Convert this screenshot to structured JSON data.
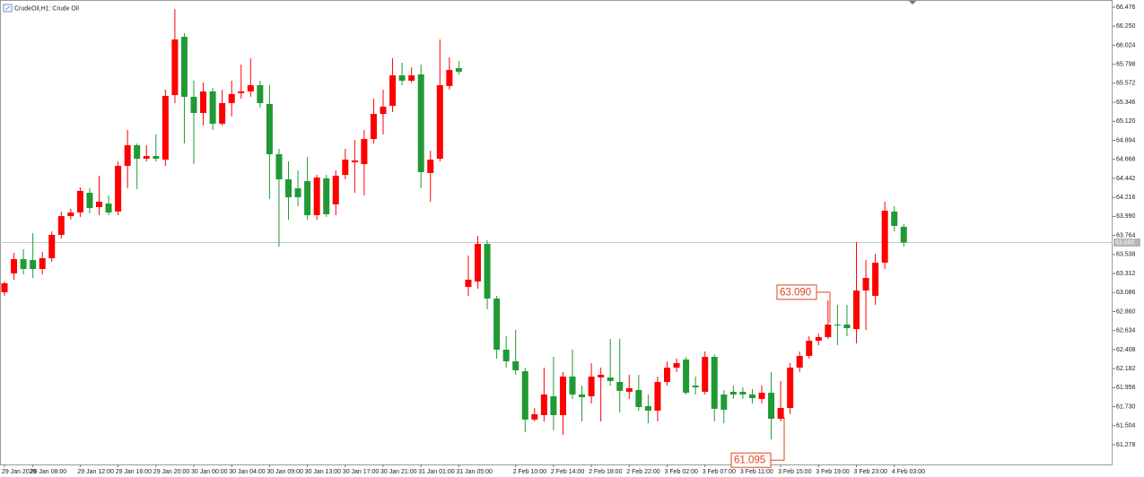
{
  "chart_data": {
    "type": "candlestick",
    "title": "CrudeOil,H1:  Crude Oil",
    "up_color": "#ff0000",
    "down_color": "#1f9a35",
    "ylim": [
      61.044,
      66.561
    ],
    "yticks": [
      66.476,
      {
        "value": 66.25,
        "label": "66.250"
      },
      66.024,
      65.798,
      65.572,
      65.346,
      {
        "value": 65.12,
        "label": "65.120"
      },
      64.894,
      64.668,
      64.442,
      64.216,
      {
        "value": 63.99,
        "label": "63.990"
      },
      63.764,
      63.538,
      63.312,
      63.086,
      {
        "value": 62.86,
        "label": "62.860"
      },
      62.634,
      62.408,
      62.182,
      61.956,
      {
        "value": 61.73,
        "label": "61.730"
      },
      61.504,
      61.278
    ],
    "current_price": {
      "value": 63.68,
      "label": "63.680"
    },
    "annotations": [
      {
        "value": 63.09,
        "label": "63.090"
      },
      {
        "value": 61.095,
        "label": "61.095"
      }
    ],
    "categories": [
      "29 Jan 2026",
      null,
      null,
      "29 Jan 08:00",
      null,
      null,
      null,
      null,
      "29 Jan 12:00",
      null,
      null,
      null,
      "29 Jan 16:00",
      null,
      null,
      null,
      "29 Jan 20:00",
      null,
      null,
      null,
      "30 Jan 00:00",
      null,
      null,
      null,
      "30 Jan 04:00",
      null,
      null,
      null,
      "30 Jan 09:00",
      null,
      null,
      null,
      "30 Jan 13:00",
      null,
      null,
      null,
      "30 Jan 17:00",
      null,
      null,
      null,
      "30 Jan 21:00",
      null,
      null,
      null,
      "31 Jan 01:00",
      null,
      null,
      null,
      "31 Jan 05:00",
      null,
      null,
      null,
      null,
      null,
      "2 Feb 10:00",
      null,
      null,
      null,
      "2 Feb 14:00",
      null,
      null,
      null,
      "2 Feb 18:00",
      null,
      null,
      null,
      "2 Feb 22:00",
      null,
      null,
      null,
      "3 Feb 02:00",
      null,
      null,
      null,
      "3 Feb 07:00",
      null,
      null,
      null,
      "3 Feb 11:00",
      null,
      null,
      null,
      "3 Feb 15:00",
      null,
      null,
      null,
      "3 Feb 19:00",
      null,
      null,
      null,
      "3 Feb 23:00",
      null,
      null,
      null,
      "4 Feb 03:00",
      null
    ],
    "open": [
      63.089,
      63.313,
      63.483,
      63.472,
      63.366,
      63.494,
      63.771,
      63.994,
      64.037,
      64.271,
      64.101,
      64.143,
      64.048,
      64.591,
      64.836,
      64.676,
      64.708,
      64.665,
      65.432,
      66.124,
      65.411,
      65.219,
      65.475,
      65.091,
      65.336,
      65.453,
      65.475,
      65.549,
      65.326,
      64.729,
      64.431,
      64.324,
      64.41,
      64.005,
      64.442,
      64.133,
      64.484,
      64.633,
      64.612,
      64.91,
      65.208,
      65.304,
      65.666,
      65.602,
      65.677,
      64.506,
      64.676,
      65.539,
      65.752,
      63.153,
      63.217,
      63.664,
      63.015,
      62.407,
      62.269,
      62.152,
      61.577,
      61.63,
      61.854,
      61.63,
      62.088,
      61.875,
      61.854,
      62.077,
      62.077,
      62.024,
      61.907,
      61.928,
      61.737,
      61.683,
      62.024,
      62.194,
      62.29,
      61.981,
      61.907,
      62.322,
      61.875,
      61.907,
      61.907,
      61.875,
      61.822,
      61.896,
      61.587,
      61.715,
      62.194,
      62.333,
      62.514,
      62.557,
      62.706,
      62.706,
      62.652,
      63.11,
      63.047,
      63.441,
      64.048,
      63.867
    ],
    "high": [
      63.217,
      63.558,
      63.6,
      63.792,
      63.568,
      63.813,
      64.048,
      64.08,
      64.335,
      64.324,
      64.474,
      64.239,
      64.644,
      65.017,
      64.857,
      64.836,
      64.963,
      65.496,
      66.454,
      66.167,
      65.602,
      65.581,
      65.517,
      65.496,
      65.602,
      65.794,
      65.869,
      65.602,
      65.549,
      64.793,
      64.644,
      64.537,
      64.697,
      64.484,
      64.484,
      64.537,
      64.793,
      64.9,
      65.017,
      65.389,
      65.496,
      65.869,
      65.815,
      65.762,
      65.794,
      64.772,
      66.092,
      65.879,
      65.837,
      63.526,
      63.76,
      63.707,
      63.047,
      62.567,
      62.642,
      62.194,
      61.715,
      62.194,
      62.322,
      62.141,
      62.407,
      61.981,
      62.248,
      62.194,
      62.535,
      62.535,
      62.109,
      62.109,
      61.875,
      62.088,
      62.269,
      62.301,
      62.322,
      62.088,
      62.386,
      62.354,
      61.928,
      61.981,
      61.96,
      61.939,
      61.981,
      62.141,
      62.035,
      62.248,
      62.386,
      62.567,
      62.599,
      62.993,
      62.94,
      62.94,
      63.685,
      63.472,
      63.547,
      64.165,
      64.111,
      63.898
    ],
    "low": [
      63.047,
      63.238,
      63.302,
      63.259,
      63.302,
      63.451,
      63.728,
      63.952,
      63.984,
      64.026,
      64.005,
      64.005,
      64.005,
      64.324,
      64.314,
      64.644,
      64.644,
      64.591,
      65.336,
      64.857,
      64.612,
      65.07,
      65.017,
      65.07,
      65.176,
      65.389,
      65.411,
      65.283,
      64.197,
      63.632,
      63.952,
      64.111,
      63.952,
      63.952,
      63.984,
      64.005,
      64.431,
      64.271,
      64.239,
      64.857,
      64.963,
      65.23,
      65.549,
      65.581,
      64.324,
      64.165,
      64.644,
      65.496,
      65.677,
      63.047,
      63.132,
      62.887,
      62.301,
      62.194,
      62.109,
      61.428,
      61.555,
      61.555,
      61.449,
      61.396,
      61.822,
      61.555,
      61.768,
      61.555,
      61.981,
      61.662,
      61.822,
      61.683,
      61.534,
      61.555,
      61.981,
      62.141,
      61.875,
      61.875,
      61.875,
      61.555,
      61.534,
      61.822,
      61.822,
      61.768,
      61.768,
      61.342,
      61.555,
      61.641,
      62.141,
      62.301,
      62.461,
      62.535,
      62.461,
      62.567,
      62.482,
      62.642,
      62.94,
      63.366,
      63.813,
      63.632
    ],
    "close": [
      63.196,
      63.483,
      63.366,
      63.366,
      63.494,
      63.771,
      63.994,
      64.037,
      64.293,
      64.09,
      64.165,
      64.037,
      64.591,
      64.836,
      64.676,
      64.708,
      64.676,
      65.421,
      66.092,
      65.411,
      65.219,
      65.475,
      65.091,
      65.336,
      65.443,
      65.475,
      65.549,
      65.336,
      64.729,
      64.431,
      64.218,
      64.218,
      64.005,
      64.452,
      64.016,
      64.474,
      64.665,
      64.655,
      64.91,
      65.208,
      65.294,
      65.666,
      65.602,
      65.666,
      64.516,
      64.665,
      65.549,
      65.73,
      65.709,
      63.238,
      63.664,
      63.015,
      62.407,
      62.269,
      62.163,
      61.577,
      61.641,
      61.875,
      61.63,
      62.088,
      61.875,
      61.843,
      62.088,
      62.109,
      62.035,
      61.918,
      61.95,
      61.726,
      61.683,
      62.024,
      62.194,
      62.248,
      61.896,
      61.96,
      62.322,
      61.705,
      61.694,
      61.875,
      61.875,
      61.832,
      61.896,
      61.587,
      61.715,
      62.194,
      62.333,
      62.514,
      62.557,
      62.706,
      62.695,
      62.663,
      63.11,
      63.259,
      63.441,
      64.058,
      63.877,
      63.68
    ]
  }
}
